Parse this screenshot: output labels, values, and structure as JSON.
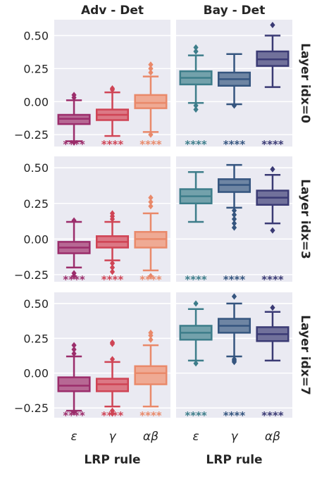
{
  "chart_data": {
    "type": "boxplot",
    "col_titles": [
      "Adv - Det",
      "Bay - Det"
    ],
    "row_titles": [
      "Layer idx=0",
      "Layer idx=3",
      "Layer idx=7"
    ],
    "xlabel": "LRP rule",
    "categories": [
      "ε",
      "γ",
      "αβ"
    ],
    "yticks": [
      -0.25,
      0.0,
      0.25,
      0.5
    ],
    "ytick_labels": [
      "−0.25",
      "0.00",
      "0.25",
      "0.50"
    ],
    "significance_label": "****",
    "colors": {
      "adv": [
        "#9b2d6b",
        "#cf4455",
        "#e9896a"
      ],
      "bay": [
        "#3d7d8a",
        "#35557f",
        "#3a3a74"
      ],
      "background": "#eaeaf2"
    },
    "rows": [
      {
        "ylim": [
          -0.34,
          0.62
        ],
        "panels": [
          {
            "boxes": [
              {
                "q1": -0.17,
                "median": -0.13,
                "q3": -0.1,
                "whislo": -0.3,
                "whishi": 0.01,
                "fliers": [
                  0.03,
                  0.05,
                  -0.31
                ]
              },
              {
                "q1": -0.14,
                "median": -0.1,
                "q3": -0.06,
                "whislo": -0.26,
                "whishi": 0.07,
                "fliers": [
                  0.09,
                  0.1
                ]
              },
              {
                "q1": -0.05,
                "median": -0.01,
                "q3": 0.05,
                "whislo": -0.23,
                "whishi": 0.19,
                "fliers": [
                  0.22,
                  0.25,
                  0.28,
                  -0.25
                ]
              }
            ]
          },
          {
            "boxes": [
              {
                "q1": 0.13,
                "median": 0.18,
                "q3": 0.23,
                "whislo": -0.01,
                "whishi": 0.35,
                "fliers": [
                  0.38,
                  0.41,
                  -0.03,
                  -0.06
                ]
              },
              {
                "q1": 0.12,
                "median": 0.17,
                "q3": 0.22,
                "whislo": -0.02,
                "whishi": 0.36,
                "fliers": [
                  -0.03
                ]
              },
              {
                "q1": 0.27,
                "median": 0.32,
                "q3": 0.38,
                "whislo": 0.11,
                "whishi": 0.5,
                "fliers": [
                  0.58
                ]
              }
            ]
          }
        ]
      },
      {
        "ylim": [
          -0.3,
          0.58
        ],
        "panels": [
          {
            "boxes": [
              {
                "q1": -0.1,
                "median": -0.06,
                "q3": -0.02,
                "whislo": -0.2,
                "whishi": 0.12,
                "fliers": [
                  0.13,
                  -0.24,
                  -0.26
                ]
              },
              {
                "q1": -0.06,
                "median": -0.02,
                "q3": 0.02,
                "whislo": -0.15,
                "whishi": 0.12,
                "fliers": [
                  0.14,
                  0.16,
                  0.18,
                  -0.17,
                  -0.2,
                  -0.23
                ]
              },
              {
                "q1": -0.06,
                "median": 0.0,
                "q3": 0.05,
                "whislo": -0.22,
                "whishi": 0.18,
                "fliers": [
                  0.23,
                  0.26,
                  0.29,
                  -0.26
                ]
              }
            ]
          },
          {
            "boxes": [
              {
                "q1": 0.25,
                "median": 0.3,
                "q3": 0.35,
                "whislo": 0.12,
                "whishi": 0.47,
                "fliers": []
              },
              {
                "q1": 0.33,
                "median": 0.38,
                "q3": 0.42,
                "whislo": 0.22,
                "whishi": 0.52,
                "fliers": [
                  0.2,
                  0.17,
                  0.14,
                  0.11,
                  0.08
                ]
              },
              {
                "q1": 0.24,
                "median": 0.29,
                "q3": 0.34,
                "whislo": 0.11,
                "whishi": 0.45,
                "fliers": [
                  0.49,
                  0.06
                ]
              }
            ]
          }
        ]
      },
      {
        "ylim": [
          -0.32,
          0.58
        ],
        "panels": [
          {
            "boxes": [
              {
                "q1": -0.13,
                "median": -0.09,
                "q3": -0.03,
                "whislo": -0.27,
                "whishi": 0.12,
                "fliers": [
                  0.14,
                  0.17,
                  0.2,
                  -0.28
                ]
              },
              {
                "q1": -0.13,
                "median": -0.08,
                "q3": -0.04,
                "whislo": -0.24,
                "whishi": 0.08,
                "fliers": [
                  0.1,
                  0.21,
                  0.22,
                  -0.27,
                  -0.29
                ]
              },
              {
                "q1": -0.08,
                "median": 0.0,
                "q3": 0.05,
                "whislo": -0.24,
                "whishi": 0.2,
                "fliers": [
                  0.24,
                  0.27,
                  0.29
                ]
              }
            ]
          },
          {
            "boxes": [
              {
                "q1": 0.24,
                "median": 0.29,
                "q3": 0.34,
                "whislo": 0.09,
                "whishi": 0.46,
                "fliers": [
                  0.5,
                  0.07
                ]
              },
              {
                "q1": 0.29,
                "median": 0.34,
                "q3": 0.39,
                "whislo": 0.12,
                "whishi": 0.5,
                "fliers": [
                  0.55,
                  0.1,
                  0.09,
                  0.08
                ]
              },
              {
                "q1": 0.23,
                "median": 0.28,
                "q3": 0.33,
                "whislo": 0.09,
                "whishi": 0.44,
                "fliers": [
                  0.47
                ]
              }
            ]
          }
        ]
      }
    ]
  }
}
